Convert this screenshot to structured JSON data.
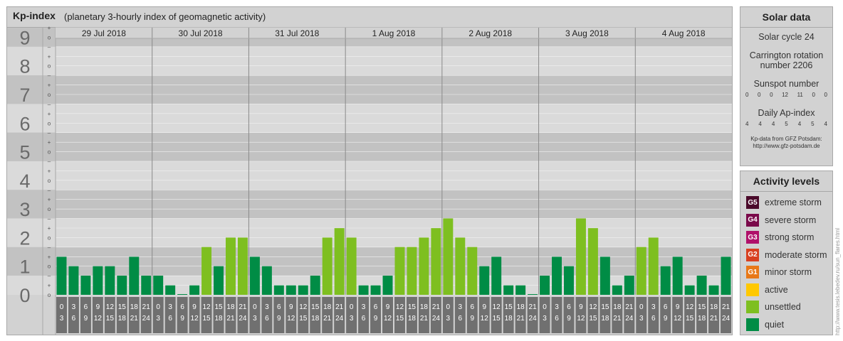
{
  "title": {
    "main": "Kp-index",
    "subtitle": "(planetary 3-hourly index of geomagnetic activity)"
  },
  "chart_data": {
    "type": "bar",
    "days": [
      "29 Jul 2018",
      "30 Jul 2018",
      "31 Jul 2018",
      "1 Aug 2018",
      "2 Aug 2018",
      "3 Aug 2018",
      "4 Aug 2018"
    ],
    "interval_top": [
      "0",
      "3",
      "6",
      "9",
      "12",
      "15",
      "18",
      "21"
    ],
    "interval_bottom": [
      "3",
      "6",
      "9",
      "12",
      "15",
      "18",
      "21",
      "24"
    ],
    "kp_values": [
      [
        1.33,
        1.0,
        0.67,
        1.0,
        1.0,
        0.67,
        1.33,
        0.67
      ],
      [
        0.67,
        0.33,
        0.0,
        0.33,
        1.67,
        1.0,
        2.0,
        2.0
      ],
      [
        1.33,
        1.0,
        0.33,
        0.33,
        0.33,
        0.67,
        2.0,
        2.33
      ],
      [
        2.0,
        0.33,
        0.33,
        0.67,
        1.67,
        1.67,
        2.0,
        2.33
      ],
      [
        2.67,
        2.0,
        1.67,
        1.0,
        1.33,
        0.33,
        0.33,
        0.0
      ],
      [
        0.67,
        1.33,
        1.0,
        2.67,
        2.33,
        1.33,
        0.33,
        0.67
      ],
      [
        1.67,
        2.0,
        1.0,
        1.33,
        0.33,
        0.67,
        0.33,
        1.33
      ]
    ],
    "y_ticks": [
      "0",
      "1",
      "2",
      "3",
      "4",
      "5",
      "6",
      "7",
      "8",
      "9"
    ],
    "sub_ticks": [
      "o",
      "+",
      "–",
      "o"
    ],
    "ylim": [
      0,
      9.33
    ],
    "colors": {
      "quiet": "#008c45",
      "unsettled": "#7ebf20",
      "active": "#ffc800"
    }
  },
  "solar": {
    "title": "Solar data",
    "cycle": "Solar cycle 24",
    "carrington_1": "Carrington rotation",
    "carrington_2": "number 2206",
    "sunspot_label": "Sunspot number",
    "sunspot_values": [
      "0",
      "0",
      "0",
      "12",
      "11",
      "0",
      "0"
    ],
    "ap_label": "Daily Ap-index",
    "ap_values": [
      "4",
      "4",
      "4",
      "5",
      "4",
      "5",
      "4"
    ],
    "credit_1": "Kp-data from GFZ Potsdam:",
    "credit_2": "http://www.gfz-potsdam.de"
  },
  "levels": {
    "title": "Activity levels",
    "items": [
      {
        "badge": "G5",
        "label": "extreme storm",
        "color": "#4a0a2a"
      },
      {
        "badge": "G4",
        "label": "severe storm",
        "color": "#7a0a4a"
      },
      {
        "badge": "G3",
        "label": "strong storm",
        "color": "#b0106a"
      },
      {
        "badge": "G2",
        "label": "moderate storm",
        "color": "#d84020"
      },
      {
        "badge": "G1",
        "label": "minor storm",
        "color": "#e87818"
      },
      {
        "badge": "",
        "label": "active",
        "color": "#ffc800"
      },
      {
        "badge": "",
        "label": "unsettled",
        "color": "#7ebf20"
      },
      {
        "badge": "",
        "label": "quiet",
        "color": "#008c45"
      }
    ]
  },
  "watermark": "http://www.tesis.lebedev.ru/sun_flares.html"
}
